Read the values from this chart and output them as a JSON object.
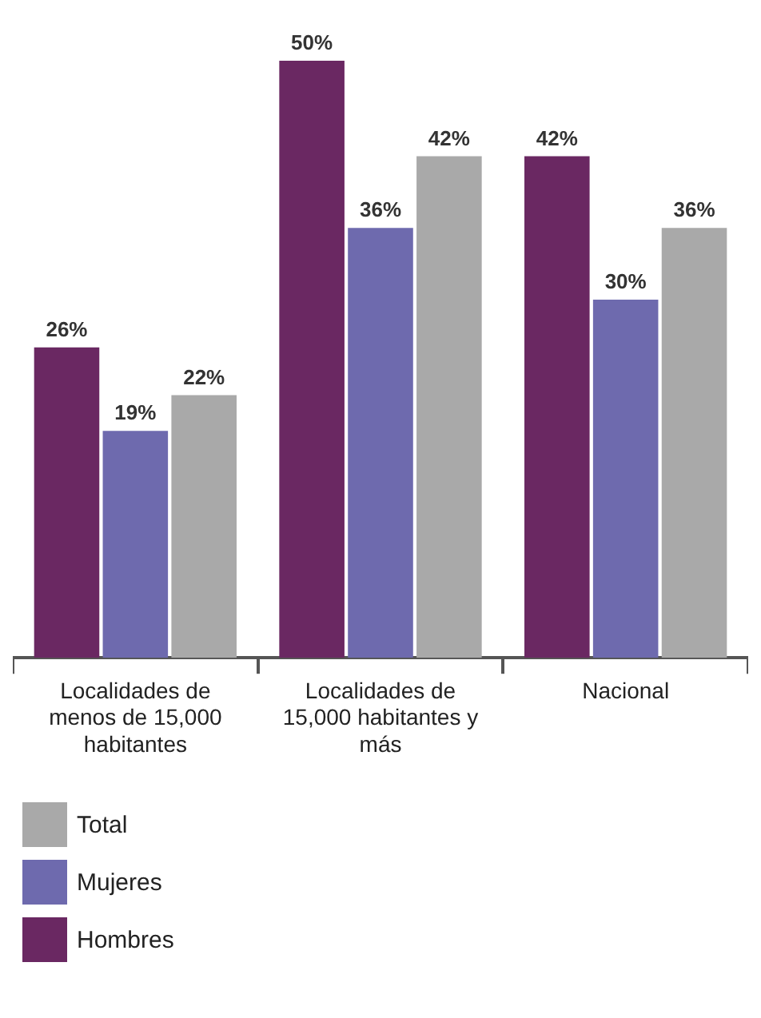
{
  "chart_data": {
    "type": "bar",
    "categories": [
      "Localidades de menos de 15,000 habitantes",
      "Localidades de 15,000 habitantes y más",
      "Nacional"
    ],
    "series": [
      {
        "name": "Hombres",
        "color": "#6a2862",
        "values": [
          26,
          50,
          42
        ],
        "value_labels": [
          "26%",
          "50%",
          "42%"
        ]
      },
      {
        "name": "Mujeres",
        "color": "#6e6aae",
        "values": [
          19,
          36,
          30
        ],
        "value_labels": [
          "19%",
          "36%",
          "30%"
        ]
      },
      {
        "name": "Total",
        "color": "#a9a9a9",
        "values": [
          22,
          42,
          36
        ],
        "value_labels": [
          "22%",
          "42%",
          "36%"
        ]
      }
    ],
    "grid": false,
    "legend": "bottom left",
    "tick_labels": "x"
  }
}
